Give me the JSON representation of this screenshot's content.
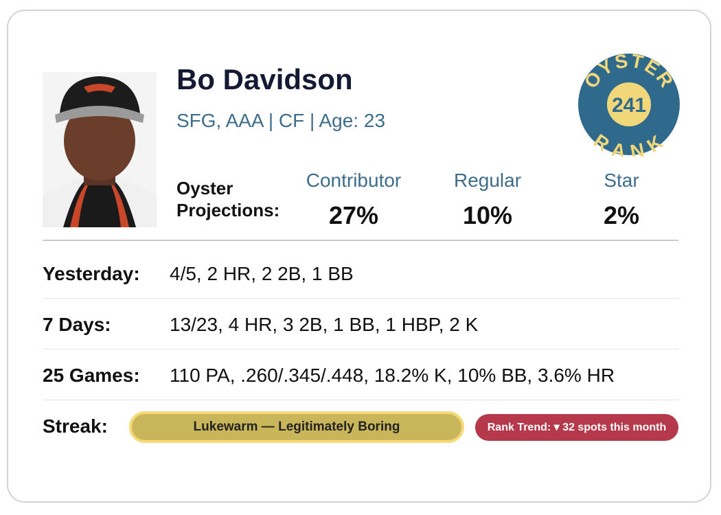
{
  "player": {
    "name": "Bo Davidson",
    "info": "SFG, AAA | CF | Age: 23"
  },
  "badge": {
    "top": "OYSTER",
    "rank": "241",
    "bottom": "RANK"
  },
  "projections": {
    "label": "Oyster Projections:",
    "columns": [
      {
        "label": "Contributor",
        "value": "27%"
      },
      {
        "label": "Regular",
        "value": "10%"
      },
      {
        "label": "Star",
        "value": "2%"
      }
    ]
  },
  "stats": [
    {
      "label": "Yesterday:",
      "value": "4/5, 2 HR, 2 2B, 1 BB"
    },
    {
      "label": "7 Days:",
      "value": "13/23, 4 HR, 3 2B, 1 BB, 1 HBP, 2 K"
    },
    {
      "label": "25 Games:",
      "value": "110 PA, .260/.345/.448, 18.2% K, 10% BB, 3.6% HR"
    }
  ],
  "streak": {
    "label": "Streak:",
    "value": "Lukewarm — Legitimately Boring",
    "trend": "Rank Trend: ▾ 32 spots this month"
  }
}
